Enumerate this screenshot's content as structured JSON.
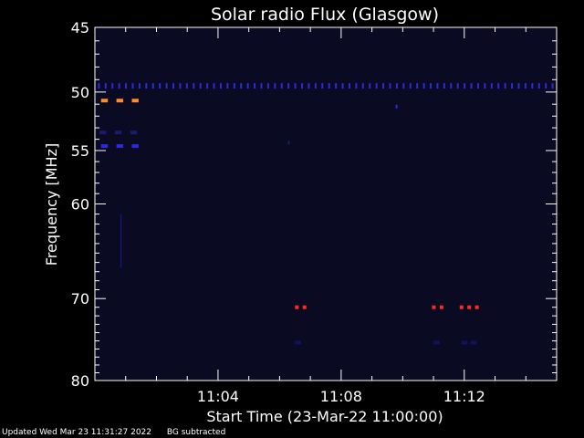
{
  "chart_data": {
    "type": "heatmap",
    "title": "Solar radio Flux (Glasgow)",
    "xlabel": "Start Time (23-Mar-22 11:00:00)",
    "ylabel": "Frequency [MHz]",
    "x_unit": "minutes after 11:00:00",
    "xlim": [
      0,
      15
    ],
    "ylim": [
      45,
      80
    ],
    "y_scale": "log",
    "y_reversed": true,
    "x_ticks": [
      {
        "value": 4,
        "label": "11:04"
      },
      {
        "value": 8,
        "label": "11:08"
      },
      {
        "value": 12,
        "label": "11:12"
      }
    ],
    "y_ticks": [
      {
        "value": 45,
        "label": "45"
      },
      {
        "value": 50,
        "label": "50"
      },
      {
        "value": 55,
        "label": "55"
      },
      {
        "value": 60,
        "label": "60"
      },
      {
        "value": 70,
        "label": "70"
      },
      {
        "value": 80,
        "label": "80"
      }
    ],
    "background_color": "#0a0a22",
    "features": [
      {
        "kind": "row_dots",
        "freq": 49.5,
        "x_start": 0.1,
        "x_end": 15.0,
        "step": 0.22,
        "color": "#2a2ae0"
      },
      {
        "kind": "dashes",
        "freq": 50.7,
        "x_starts": [
          0.2,
          0.7,
          1.2
        ],
        "len": 0.22,
        "color": "#ff8c28"
      },
      {
        "kind": "dashes",
        "freq": 53.4,
        "x_starts": [
          0.15,
          0.65,
          1.15
        ],
        "len": 0.22,
        "color": "#1a1a70"
      },
      {
        "kind": "dashes",
        "freq": 54.6,
        "x_starts": [
          0.2,
          0.7,
          1.2
        ],
        "len": 0.22,
        "color": "#2a2ae0"
      },
      {
        "kind": "dashes",
        "freq": 71.0,
        "x_starts": [
          6.5,
          6.75,
          10.95,
          11.2,
          11.85,
          12.1,
          12.35
        ],
        "len": 0.12,
        "color": "#ff2a1a"
      },
      {
        "kind": "dashes",
        "freq": 75.2,
        "x_starts": [
          6.5,
          11.0,
          11.9,
          12.2
        ],
        "len": 0.2,
        "color": "#12125a"
      },
      {
        "kind": "blip",
        "freq": 51.2,
        "x": 9.8,
        "color": "#2a2ae0"
      },
      {
        "kind": "blip",
        "freq": 54.3,
        "x": 6.3,
        "color": "#1a1a8a"
      },
      {
        "kind": "streak",
        "x": 0.85,
        "freq_from": 61.0,
        "freq_to": 66.5,
        "color": "#1a1aa0"
      }
    ]
  },
  "footer": {
    "updated": "Updated Wed Mar 23 11:31:27 2022",
    "note": "BG subtracted"
  },
  "colors": {
    "axis": "#ffffff",
    "text": "#ffffff",
    "page_bg": "#000000"
  }
}
